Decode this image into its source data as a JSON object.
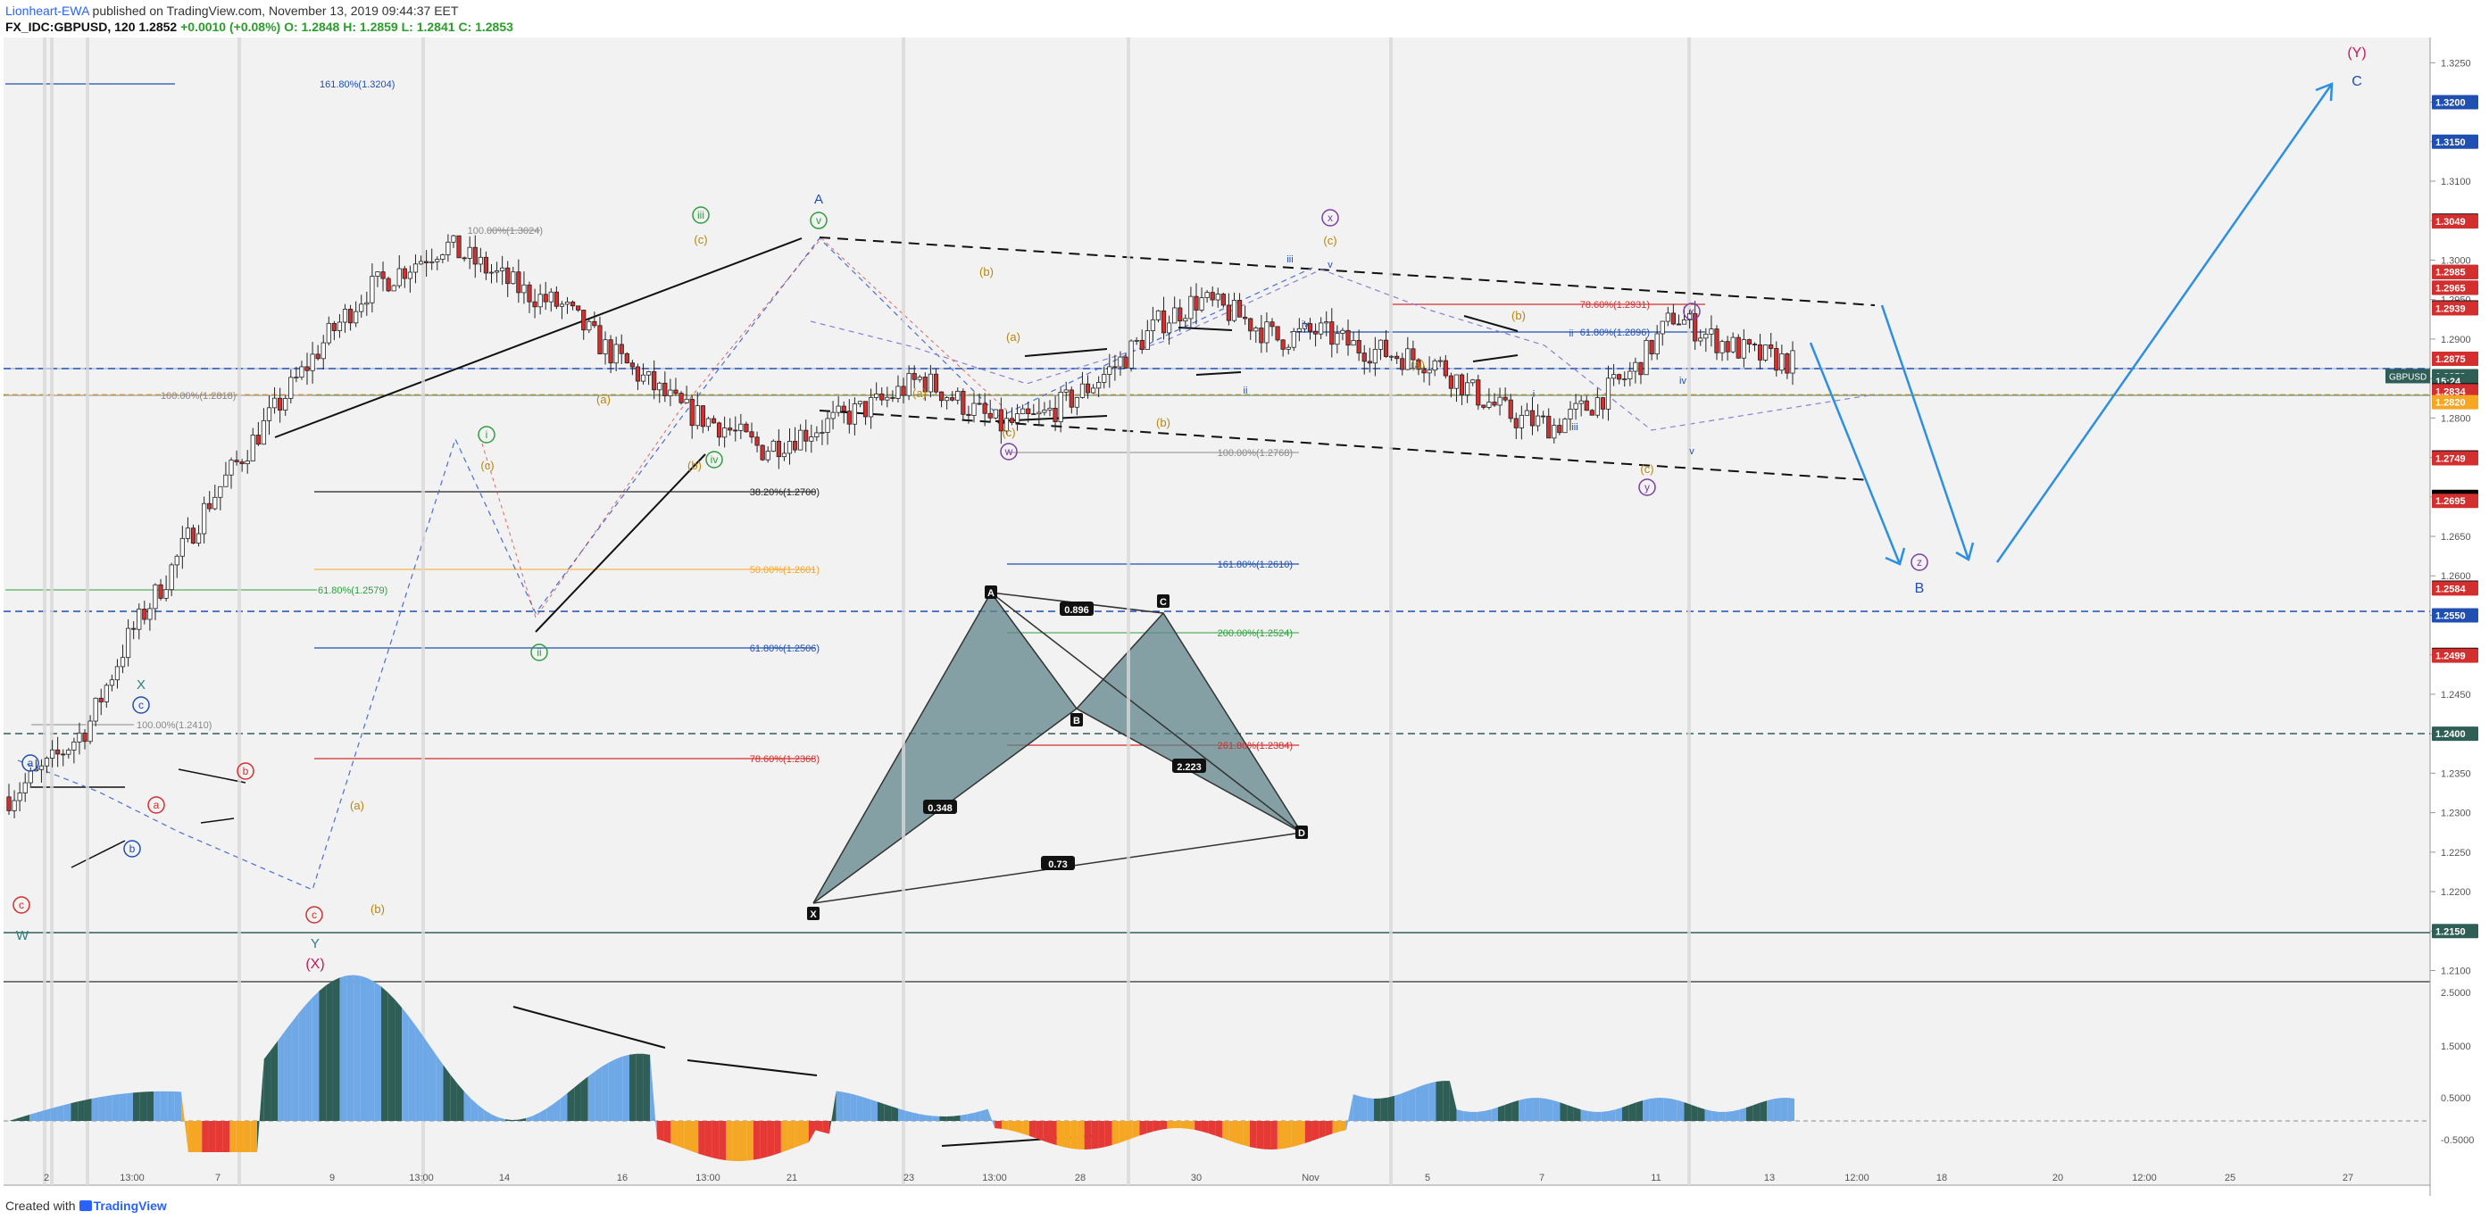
{
  "header": {
    "author": "Lionheart-EWA",
    "published": " published on TradingView.com, November 13, 2019 09:44:37 EET",
    "symbol": "FX_IDC:GBPUSD, 120",
    "last": "1.2852",
    "change": "+0.0010 (+0.08%)",
    "ohlc_o": "O: 1.2848",
    "ohlc_h": "H: 1.2859",
    "ohlc_l": "L: 1.2841",
    "ohlc_c": "C: 1.2853"
  },
  "footer": {
    "prefix": "Created with",
    "brand": "TradingView"
  },
  "colors": {
    "bg": "#f2f2f2",
    "up": "#26a69a",
    "down": "#d32f2f",
    "candle": "#222222",
    "wave_blue": "#1f4fb0",
    "wave_green": "#2e9e3e",
    "wave_orange": "#b8860b",
    "wave_red": "#d32f2f",
    "wave_purple": "#7b3fa0",
    "projection": "#2d8fe0",
    "osc_blue": "#6fa8e6",
    "osc_dark": "#2f5e57",
    "osc_orange": "#f5a623",
    "osc_red": "#e53935"
  },
  "chart_data": {
    "type": "candlestick",
    "y_axis_ticks": [
      "1.3250",
      "1.3200",
      "1.3150",
      "1.3100",
      "1.3050",
      "1.3000",
      "1.2950",
      "1.2900",
      "1.2850",
      "1.2800",
      "1.2750",
      "1.2700",
      "1.2650",
      "1.2600",
      "1.2550",
      "1.2500",
      "1.2450",
      "1.2400",
      "1.2350",
      "1.2300",
      "1.2250",
      "1.2200",
      "1.2150",
      "1.2100"
    ],
    "ylim": [
      1.2087,
      1.3282
    ],
    "price_tags": [
      {
        "label": "1.3200",
        "value": 1.32,
        "bg": "#1f4fb0"
      },
      {
        "label": "1.3150",
        "value": 1.315,
        "bg": "#1f4fb0"
      },
      {
        "label": "1.3050",
        "value": 1.305,
        "bg": "#000000"
      },
      {
        "label": "1.3049",
        "value": 1.3049,
        "bg": "#d32f2f"
      },
      {
        "label": "1.2985",
        "value": 1.2985,
        "bg": "#000000"
      },
      {
        "label": "1.2985",
        "value": 1.2985,
        "bg": "#d32f2f"
      },
      {
        "label": "1.2965",
        "value": 1.2965,
        "bg": "#000000"
      },
      {
        "label": "1.2965",
        "value": 1.2965,
        "bg": "#d32f2f"
      },
      {
        "label": "1.2940",
        "value": 1.294,
        "bg": "#000000"
      },
      {
        "label": "1.2939",
        "value": 1.2939,
        "bg": "#d32f2f"
      },
      {
        "label": "1.2940",
        "value": 1.294,
        "bg": "#000000"
      },
      {
        "label": "1.2939",
        "value": 1.2939,
        "bg": "#d32f2f"
      },
      {
        "label": "1.2875",
        "value": 1.2875,
        "bg": "#000000"
      },
      {
        "label": "1.2875",
        "value": 1.2875,
        "bg": "#d32f2f"
      },
      {
        "label": "1.2853",
        "value": 1.2853,
        "bg": "#2f5e57"
      },
      {
        "label": "15:24",
        "value": 1.2847,
        "bg": "#2f5e57"
      },
      {
        "label": "1.2835",
        "value": 1.2835,
        "bg": "#000000"
      },
      {
        "label": "1.2834",
        "value": 1.2834,
        "bg": "#d32f2f"
      },
      {
        "label": "1.2820",
        "value": 1.282,
        "bg": "#f5a623"
      },
      {
        "label": "1.2750",
        "value": 1.275,
        "bg": "#1f4fb0"
      },
      {
        "label": "1.2750",
        "value": 1.275,
        "bg": "#000000"
      },
      {
        "label": "1.2749",
        "value": 1.2749,
        "bg": "#d32f2f"
      },
      {
        "label": "1.2700",
        "value": 1.27,
        "bg": "#000000"
      },
      {
        "label": "1.2695",
        "value": 1.2695,
        "bg": "#d32f2f"
      },
      {
        "label": "1.2585",
        "value": 1.2585,
        "bg": "#000000"
      },
      {
        "label": "1.2584",
        "value": 1.2584,
        "bg": "#d32f2f"
      },
      {
        "label": "1.2550",
        "value": 1.255,
        "bg": "#1f4fb0"
      },
      {
        "label": "1.2500",
        "value": 1.25,
        "bg": "#000000"
      },
      {
        "label": "1.2499",
        "value": 1.2499,
        "bg": "#d32f2f"
      },
      {
        "label": "1.2400",
        "value": 1.24,
        "bg": "#2f5e57"
      },
      {
        "label": "1.2150",
        "value": 1.215,
        "bg": "#2f5e57"
      }
    ],
    "symbol_tag": "GBPUSD",
    "x_axis_labels": [
      "2",
      "13:00",
      "7",
      "9",
      "13:00",
      "14",
      "16",
      "13:00",
      "21",
      "23",
      "13:00",
      "28",
      "30",
      "Nov",
      "5",
      "7",
      "11",
      "13",
      "12:00",
      "18",
      "20",
      "12:00",
      "25",
      "27"
    ],
    "osc_ticks": [
      "2.5000",
      "1.5000",
      "0.5000",
      "-0.5000"
    ],
    "fib_labels": [
      "161.80%(1.3204)",
      "100.00%(1.3024)",
      "100.00%(1.2818)",
      "38.20%(1.2700)",
      "50.00%(1.2601)",
      "61.80%(1.2579)",
      "61.80%(1.2506)",
      "100.00%(1.2410)",
      "78.60%(1.2368)",
      "161.80%(1.2610)",
      "200.00%(1.2524)",
      "261.80%(1.2384)",
      "100.00%(1.2768)",
      "78.60%(1.2931)",
      "61.80%(1.2896)"
    ],
    "harmonic": {
      "points": [
        "X",
        "A",
        "B",
        "C",
        "D"
      ],
      "ratios": [
        "0.896",
        "0.348",
        "2.223",
        "0.73"
      ]
    },
    "wave_labels": [
      "A",
      "B",
      "C",
      "(Y)",
      "(X)",
      "X",
      "Y",
      "W",
      "i",
      "ii",
      "iii",
      "iv",
      "v",
      "w",
      "x",
      "y",
      "z",
      "a",
      "b",
      "c",
      "(a)",
      "(b)",
      "(c)"
    ],
    "closes": [
      1.232,
      1.236,
      1.241,
      1.252,
      1.26,
      1.269,
      1.276,
      1.283,
      1.29,
      1.296,
      1.299,
      1.302,
      1.299,
      1.296,
      1.294,
      1.289,
      1.285,
      1.281,
      1.279,
      1.276,
      1.278,
      1.28,
      1.282,
      1.285,
      1.282,
      1.279,
      1.28,
      1.283,
      1.287,
      1.292,
      1.295,
      1.293,
      1.29,
      1.291,
      1.289,
      1.288,
      1.287,
      1.283,
      1.28,
      1.279,
      1.282,
      1.286,
      1.293,
      1.29,
      1.288,
      1.287
    ]
  }
}
